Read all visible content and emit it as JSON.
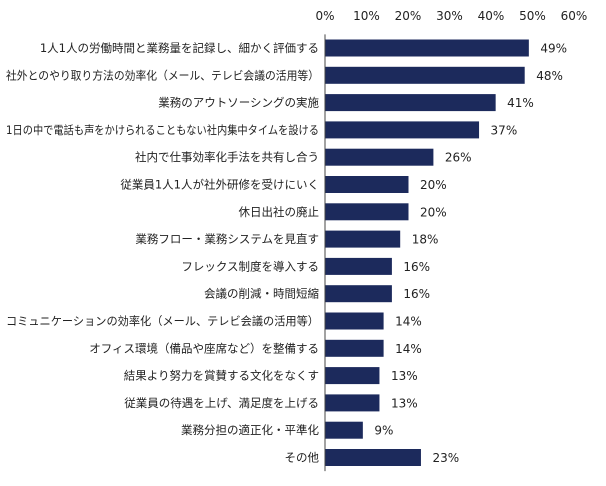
{
  "chart_data": {
    "type": "bar",
    "orientation": "horizontal",
    "bar_color": "#1c2a5c",
    "grid": false,
    "xlim": [
      0,
      60
    ],
    "x_ticks": [
      "0%",
      "10%",
      "20%",
      "30%",
      "40%",
      "50%",
      "60%"
    ],
    "tick_values": [
      0,
      10,
      20,
      30,
      40,
      50,
      60
    ],
    "categories": [
      "1人1人の労働時間と業務量を記録し、細かく評価する",
      "社外とのやり取り方法の効率化（メール、テレビ会議の活用等）",
      "業務のアウトソーシングの実施",
      "1日の中で電話も声をかけられることもない社内集中タイムを設ける",
      "社内で仕事効率化手法を共有し合う",
      "従業員1人1人が社外研修を受けにいく",
      "休日出社の廃止",
      "業務フロー・業務システムを見直す",
      "フレックス制度を導入する",
      "会議の削減・時間短縮",
      "コミュニケーションの効率化（メール、テレビ会議の活用等）",
      "オフィス環境（備品や座席など）を整備する",
      "結果より努力を賞賛する文化をなくす",
      "従業員の待遇を上げ、満足度を上げる",
      "業務分担の適正化・平準化",
      "その他"
    ],
    "values": [
      49,
      48,
      41,
      37,
      26,
      20,
      20,
      18,
      16,
      16,
      14,
      14,
      13,
      13,
      9,
      23
    ],
    "value_labels": [
      "49%",
      "48%",
      "41%",
      "37%",
      "26%",
      "20%",
      "20%",
      "18%",
      "16%",
      "16%",
      "14%",
      "14%",
      "13%",
      "13%",
      "9%",
      "23%"
    ]
  }
}
